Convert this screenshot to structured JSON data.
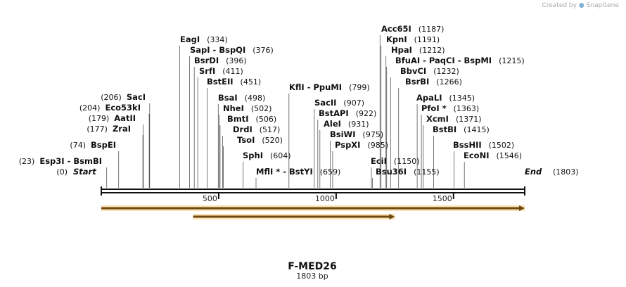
{
  "credit": {
    "prefix": "Created by",
    "brand": "SnapGene"
  },
  "plasmid": {
    "name": "F-MED26",
    "length_label": "1803 bp",
    "length": 1803
  },
  "markers": {
    "start": {
      "label": "Start",
      "pos": "(0)"
    },
    "end": {
      "label": "End",
      "pos": "(1803)"
    }
  },
  "axis_ticks": [
    {
      "value": 500,
      "label": "500"
    },
    {
      "value": 1000,
      "label": "1000"
    },
    {
      "value": 1500,
      "label": "1500"
    }
  ],
  "features": [
    {
      "name": "feature-long",
      "start": 0,
      "end": 1803,
      "color": "#f5a623"
    },
    {
      "name": "feature-short",
      "start": 391,
      "end": 1250,
      "color": "#f5a623"
    }
  ],
  "enzymes_left": [
    {
      "name": "Esp3I - BsmBI",
      "pos": "(23)",
      "site": 23
    },
    {
      "name": "BspEI",
      "pos": "(74)",
      "site": 74
    },
    {
      "name": "ZraI",
      "pos": "(177)",
      "site": 177
    },
    {
      "name": "AatII",
      "pos": "(179)",
      "site": 179
    },
    {
      "name": "Eco53kI",
      "pos": "(204)",
      "site": 204
    },
    {
      "name": "SacI",
      "pos": "(206)",
      "site": 206
    }
  ],
  "enzymes_right": [
    {
      "name": "EagI",
      "pos": "(334)",
      "site": 334
    },
    {
      "name": "SapI - BspQI",
      "pos": "(376)",
      "site": 376
    },
    {
      "name": "BsrDI",
      "pos": "(396)",
      "site": 396
    },
    {
      "name": "SrfI",
      "pos": "(411)",
      "site": 411
    },
    {
      "name": "BstEII",
      "pos": "(451)",
      "site": 451
    },
    {
      "name": "BsaI",
      "pos": "(498)",
      "site": 498
    },
    {
      "name": "NheI",
      "pos": "(502)",
      "site": 502
    },
    {
      "name": "BmtI",
      "pos": "(506)",
      "site": 506
    },
    {
      "name": "DrdI",
      "pos": "(517)",
      "site": 517
    },
    {
      "name": "TsoI",
      "pos": "(520)",
      "site": 520
    },
    {
      "name": "SphI",
      "pos": "(604)",
      "site": 604
    },
    {
      "name": "MflI * - BstYI",
      "pos": "(659)",
      "site": 659
    },
    {
      "name": "KflI - PpuMI",
      "pos": "(799)",
      "site": 799
    },
    {
      "name": "SacII",
      "pos": "(907)",
      "site": 907
    },
    {
      "name": "BstAPI",
      "pos": "(922)",
      "site": 922
    },
    {
      "name": "AleI",
      "pos": "(931)",
      "site": 931
    },
    {
      "name": "BsiWI",
      "pos": "(975)",
      "site": 975
    },
    {
      "name": "PspXI",
      "pos": "(985)",
      "site": 985
    },
    {
      "name": "EciI",
      "pos": "(1150)",
      "site": 1150
    },
    {
      "name": "Bsu36I",
      "pos": "(1155)",
      "site": 1155
    },
    {
      "name": "Acc65I",
      "pos": "(1187)",
      "site": 1187
    },
    {
      "name": "KpnI",
      "pos": "(1191)",
      "site": 1191
    },
    {
      "name": "HpaI",
      "pos": "(1212)",
      "site": 1212
    },
    {
      "name": "BfuAI - PaqCI - BspMI",
      "pos": "(1215)",
      "site": 1215
    },
    {
      "name": "BbvCI",
      "pos": "(1232)",
      "site": 1232
    },
    {
      "name": "BsrBI",
      "pos": "(1266)",
      "site": 1266
    },
    {
      "name": "ApaLI",
      "pos": "(1345)",
      "site": 1345
    },
    {
      "name": "PfoI *",
      "pos": "(1363)",
      "site": 1363
    },
    {
      "name": "XcmI",
      "pos": "(1371)",
      "site": 1371
    },
    {
      "name": "BstBI",
      "pos": "(1415)",
      "site": 1415
    },
    {
      "name": "BssHII",
      "pos": "(1502)",
      "site": 1502
    },
    {
      "name": "EcoNI",
      "pos": "(1546)",
      "site": 1546
    }
  ]
}
